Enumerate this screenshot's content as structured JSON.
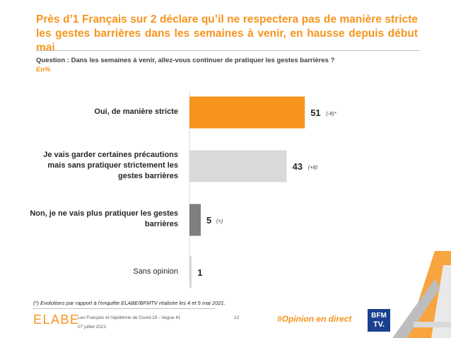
{
  "header": {
    "title": "Près d’1 Français sur 2 déclare qu’il ne respectera pas de manière stricte les gestes barrières dans les semaines à venir, en hausse depuis début mai",
    "question": "Question : Dans les semaines à venir, allez-vous continuer de pratiquer les gestes barrières ?",
    "unit": "En%"
  },
  "chart_data": {
    "type": "bar",
    "orientation": "horizontal",
    "categories": [
      "Oui, de manière stricte",
      "Je vais garder certaines précautions mais sans pratiquer strictement les gestes barrières",
      "Non, je ne vais plus pratiquer les gestes barrières",
      "Sans opinion"
    ],
    "values": [
      51,
      43,
      5,
      1
    ],
    "value_labels": [
      "51",
      "43",
      "5",
      "1"
    ],
    "evolutions": [
      "(-8)*",
      "(+8)",
      "(=)",
      ""
    ],
    "colors": [
      "#F7941D",
      "#D9D9D9",
      "#7F7F7F",
      "#D9D9D9"
    ],
    "title": "",
    "xlabel": "",
    "ylabel": "",
    "xlim": [
      0,
      60
    ],
    "grid": false,
    "legend": "none"
  },
  "footer": {
    "footnote": "(*) Evolutions par rapport à l’enquête ELABE/BFMTV réalisée les 4 et 5 mai 2021.",
    "logo": "ELABE",
    "source": "Les Français et l’épidémie de Covid-19 - Vague 41",
    "date": "07 juillet 2021",
    "page": "12",
    "hashtag": "#Opinion en direct",
    "partner_line1": "BFM",
    "partner_line2": "TV."
  }
}
